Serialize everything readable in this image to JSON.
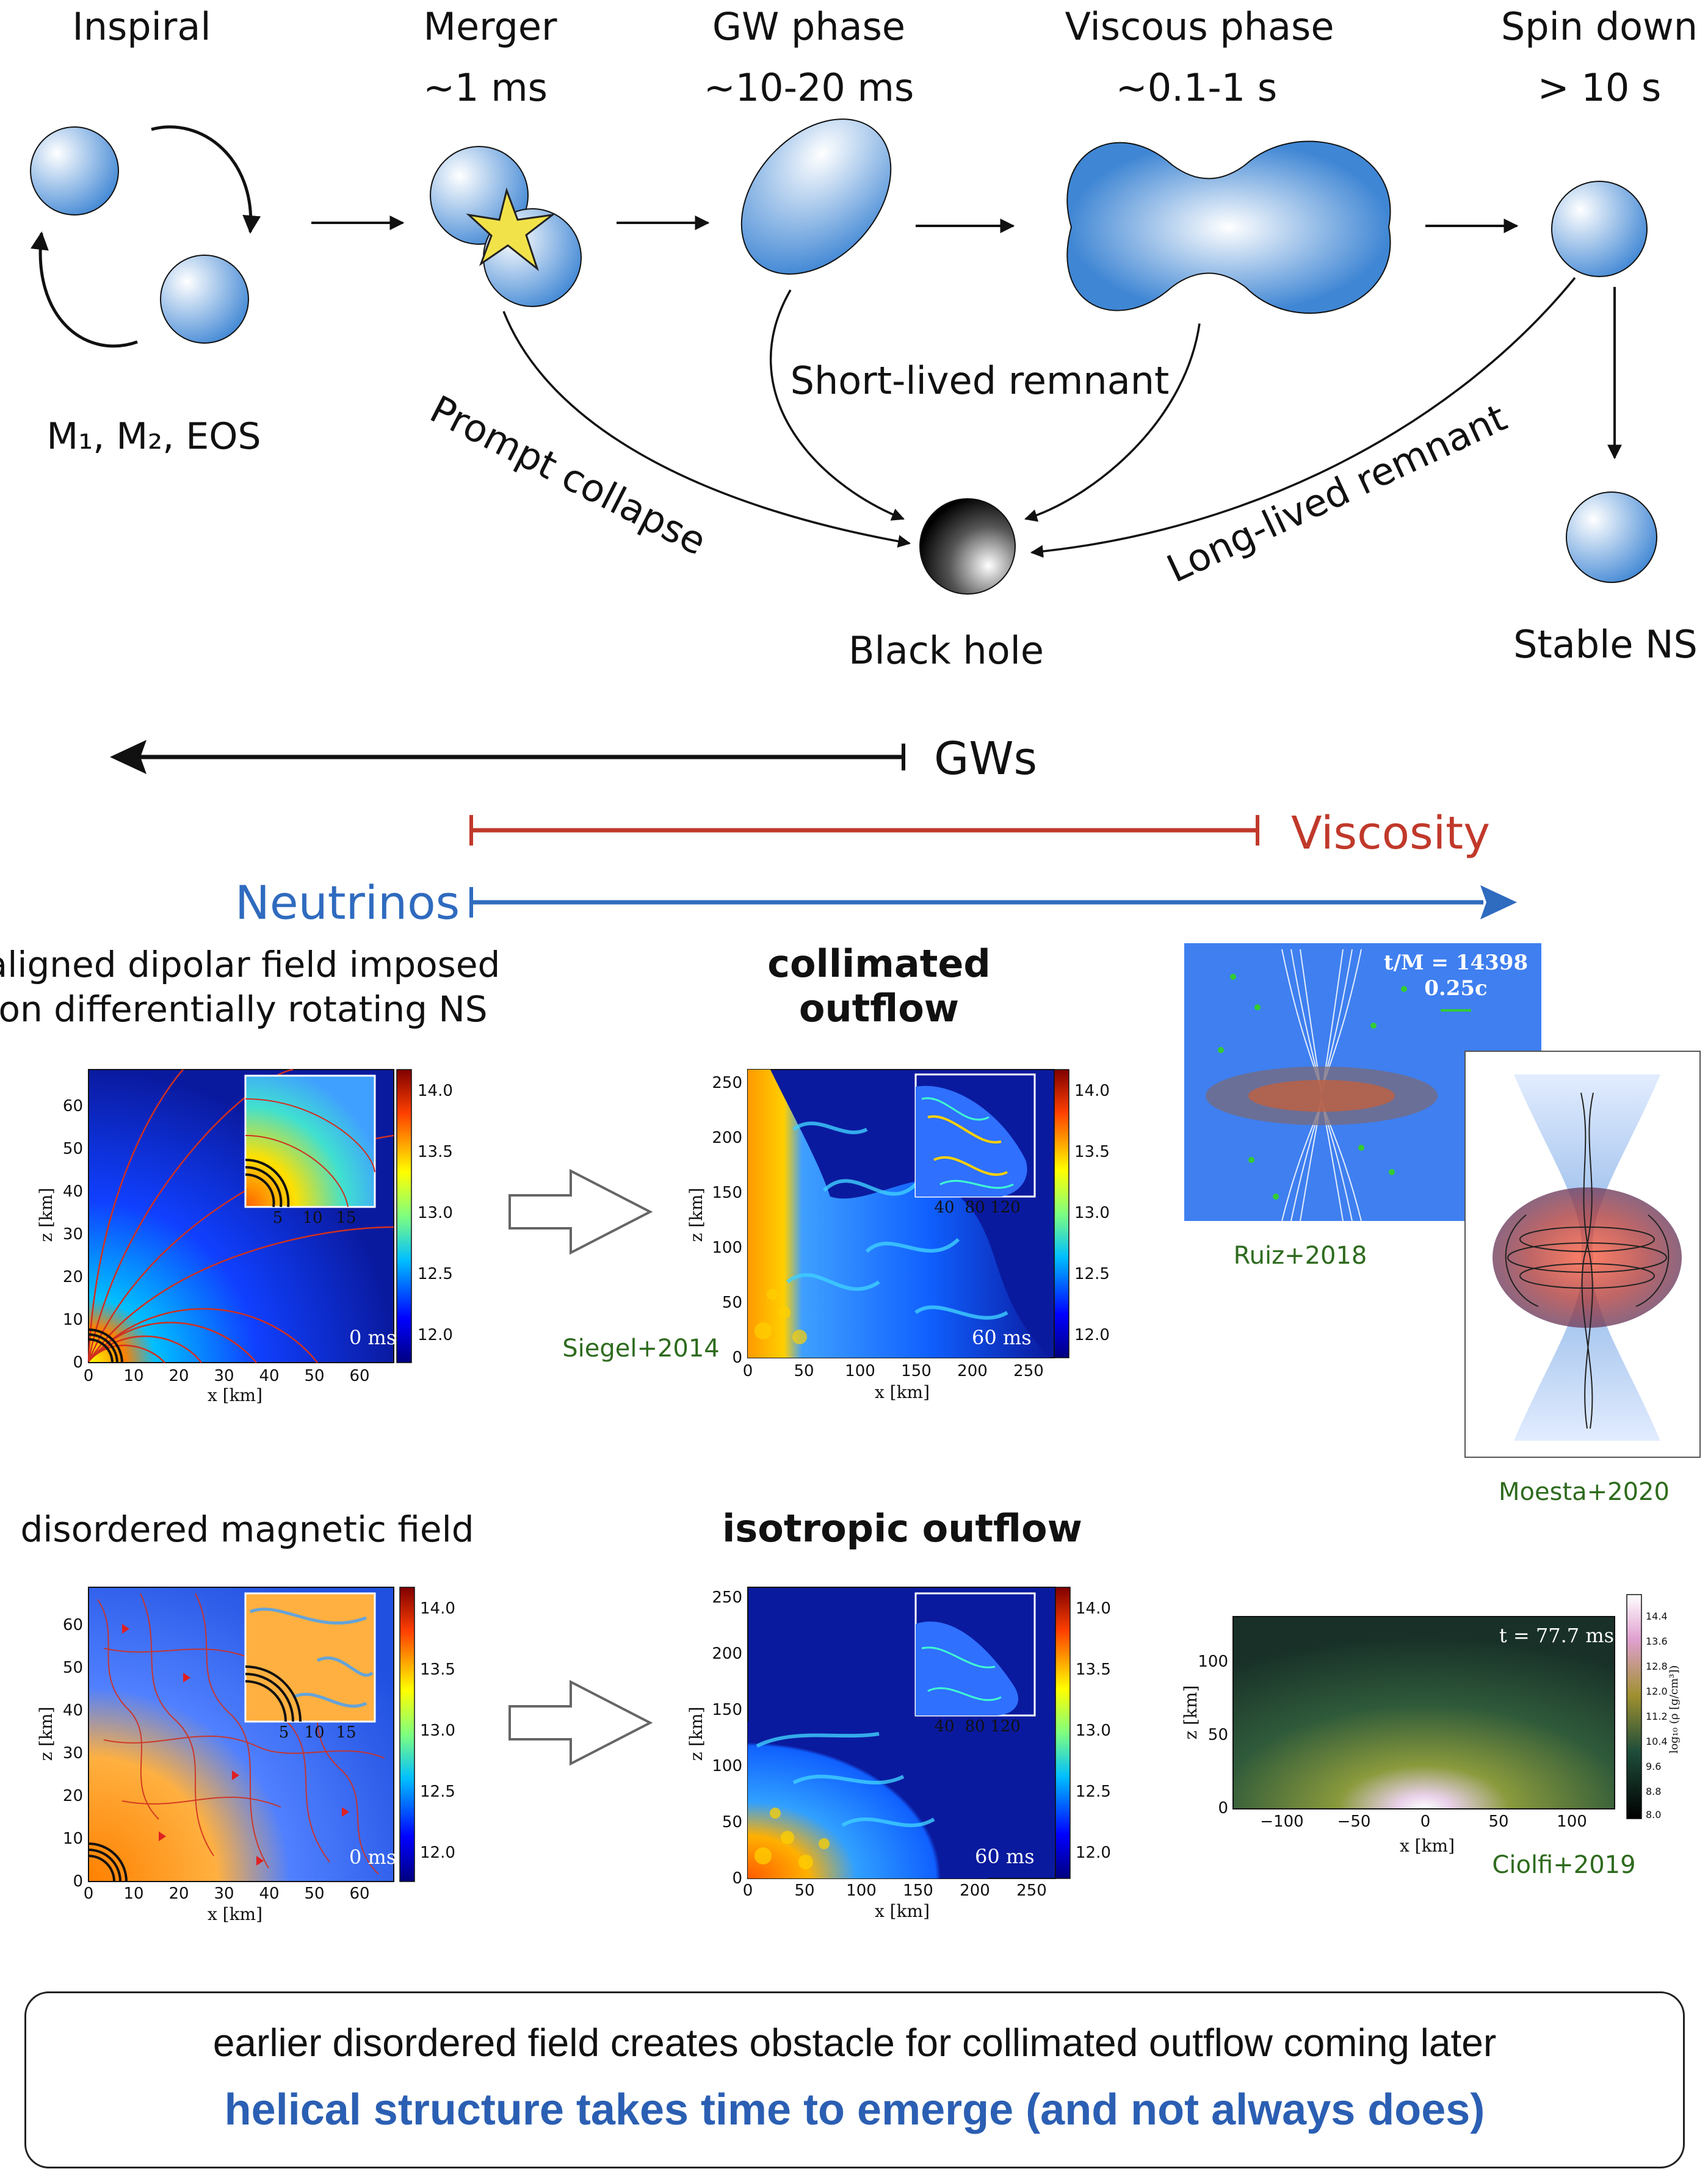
{
  "stages": [
    {
      "name": "Inspiral",
      "time": ""
    },
    {
      "name": "Merger",
      "time": "~1 ms"
    },
    {
      "name": "GW phase",
      "time": "~10-20 ms"
    },
    {
      "name": "Viscous phase",
      "time": "~0.1-1 s"
    },
    {
      "name": "Spin down",
      "time": "> 10 s"
    }
  ],
  "inspiral_params": "M₁, M₂, EOS",
  "paths": {
    "prompt": "Prompt collapse",
    "short": "Short-lived remnant",
    "long": "Long-lived remnant"
  },
  "outcomes": {
    "black_hole": "Black hole",
    "stable_ns": "Stable NS"
  },
  "processes": {
    "gws": "GWs",
    "viscosity": "Viscosity",
    "neutrinos": "Neutrinos"
  },
  "colors": {
    "viscosity": "#c0392b",
    "neutrinos": "#2f6bbf",
    "ref": "#2e6b1e",
    "caption_blue": "#2b5fb3"
  },
  "row1": {
    "left_title": [
      "aligned dipolar field imposed",
      "on differentially rotating NS"
    ],
    "right_title": [
      "collimated",
      "outflow"
    ]
  },
  "row2": {
    "left_title": "disordered magnetic field",
    "right_title": "isotropic outflow"
  },
  "refs": {
    "siegel": "Siegel+2014",
    "ruiz": "Ruiz+2018",
    "moesta": "Moesta+2020",
    "ciolfi": "Ciolfi+2019"
  },
  "plots": {
    "xlabel": "x [km]",
    "zlabel": "z [km]",
    "time0": "0 ms",
    "time60": "60 ms",
    "axis_small": [
      "0",
      "10",
      "20",
      "30",
      "40",
      "50",
      "60"
    ],
    "axis_large": [
      "0",
      "50",
      "100",
      "150",
      "200",
      "250"
    ],
    "inset_small": [
      "5",
      "10",
      "15"
    ],
    "inset_large": [
      "40",
      "80",
      "120"
    ],
    "cbar_ticks": [
      "14.0",
      "13.5",
      "13.0",
      "12.5",
      "12.0"
    ]
  },
  "ruiz_panel": {
    "time": "t/M = 14398",
    "speed": "0.25c"
  },
  "ciolfi_panel": {
    "time": "t = 77.7 ms",
    "xticks": [
      "−100",
      "−50",
      "0",
      "50",
      "100"
    ],
    "zticks": [
      "0",
      "50",
      "100"
    ],
    "cbar_label": "log₁₀ (ρ [g/cm³])",
    "cbar_ticks": [
      "14.4",
      "13.6",
      "12.8",
      "12.0",
      "11.2",
      "10.4",
      "9.6",
      "8.8",
      "8.0"
    ]
  },
  "caption": {
    "line1": "earlier disordered field creates obstacle for collimated outflow coming later",
    "line2": "helical structure takes time to emerge (and not always does)"
  }
}
